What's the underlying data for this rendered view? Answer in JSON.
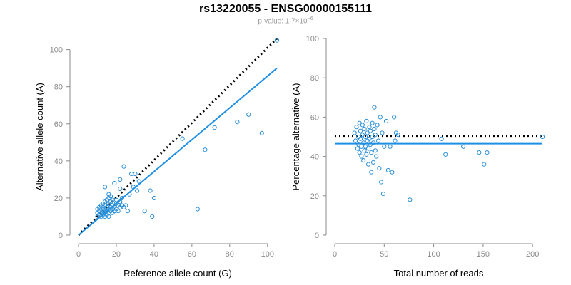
{
  "header": {
    "title": "rs13220055 - ENSG00000155111",
    "pvalue_prefix": "p-value: 1.7×10",
    "pvalue_exponent": "−6"
  },
  "colors": {
    "points": "#2a8fd8",
    "fit_line": "#1f8fe6",
    "reference_line": "#000000",
    "axis": "#8a8a8a",
    "tick_label": "#8a8a8a"
  },
  "chart_data": [
    {
      "type": "scatter",
      "title": "",
      "xlabel": "Reference allele count (G)",
      "ylabel": "Alternative allele count (A)",
      "xlim": [
        0,
        105
      ],
      "ylim": [
        0,
        106
      ],
      "xticks": [
        0,
        20,
        40,
        60,
        80,
        100
      ],
      "yticks": [
        0,
        20,
        40,
        60,
        80,
        100
      ],
      "grid": false,
      "points": [
        [
          10,
          10
        ],
        [
          10,
          12
        ],
        [
          10,
          14
        ],
        [
          11,
          11
        ],
        [
          11,
          13
        ],
        [
          11,
          15
        ],
        [
          12,
          10
        ],
        [
          12,
          12
        ],
        [
          12,
          14
        ],
        [
          12,
          16
        ],
        [
          13,
          11
        ],
        [
          13,
          13
        ],
        [
          13,
          15
        ],
        [
          13,
          17
        ],
        [
          14,
          10
        ],
        [
          14,
          12
        ],
        [
          14,
          14
        ],
        [
          14,
          16
        ],
        [
          14,
          18
        ],
        [
          14,
          26
        ],
        [
          15,
          11
        ],
        [
          15,
          13
        ],
        [
          15,
          15
        ],
        [
          15,
          19
        ],
        [
          16,
          10
        ],
        [
          16,
          12
        ],
        [
          16,
          14
        ],
        [
          16,
          17
        ],
        [
          16,
          20
        ],
        [
          16,
          22
        ],
        [
          17,
          13
        ],
        [
          17,
          15
        ],
        [
          17,
          18
        ],
        [
          17,
          21
        ],
        [
          18,
          12
        ],
        [
          18,
          14
        ],
        [
          18,
          16
        ],
        [
          18,
          19
        ],
        [
          19,
          13
        ],
        [
          19,
          15
        ],
        [
          19,
          28
        ],
        [
          20,
          14
        ],
        [
          20,
          17
        ],
        [
          20,
          19
        ],
        [
          21,
          13
        ],
        [
          21,
          16
        ],
        [
          22,
          15
        ],
        [
          22,
          18
        ],
        [
          22,
          25
        ],
        [
          22,
          30
        ],
        [
          23,
          16
        ],
        [
          23,
          20
        ],
        [
          24,
          15
        ],
        [
          24,
          37
        ],
        [
          25,
          16
        ],
        [
          26,
          13
        ],
        [
          27,
          22
        ],
        [
          28,
          33
        ],
        [
          29,
          26
        ],
        [
          30,
          33
        ],
        [
          31,
          24
        ],
        [
          32,
          29
        ],
        [
          35,
          13
        ],
        [
          38,
          24
        ],
        [
          39,
          10
        ],
        [
          40,
          20
        ],
        [
          55,
          52
        ],
        [
          63,
          14
        ],
        [
          67,
          46
        ],
        [
          72,
          58
        ],
        [
          84,
          61
        ],
        [
          90,
          65
        ],
        [
          97,
          55
        ],
        [
          105,
          105
        ]
      ],
      "fit_line": [
        [
          0,
          0
        ],
        [
          105,
          90
        ]
      ],
      "reference_line": [
        [
          0,
          0
        ],
        [
          105,
          106
        ]
      ]
    },
    {
      "type": "scatter",
      "title": "",
      "xlabel": "Total number of reads",
      "ylabel": "Percentage alternative (A)",
      "xlim": [
        0,
        210
      ],
      "ylim": [
        0,
        100
      ],
      "xticks": [
        0,
        50,
        100,
        150,
        200
      ],
      "yticks": [
        0,
        20,
        40,
        60,
        80,
        100
      ],
      "grid": false,
      "points": [
        [
          20,
          52
        ],
        [
          21,
          48
        ],
        [
          22,
          55
        ],
        [
          23,
          44
        ],
        [
          24,
          50
        ],
        [
          24,
          46
        ],
        [
          25,
          57
        ],
        [
          25,
          42
        ],
        [
          26,
          53
        ],
        [
          26,
          49
        ],
        [
          27,
          40
        ],
        [
          27,
          45
        ],
        [
          28,
          56
        ],
        [
          28,
          51
        ],
        [
          29,
          47
        ],
        [
          29,
          38
        ],
        [
          30,
          43
        ],
        [
          30,
          54
        ],
        [
          31,
          50
        ],
        [
          31,
          45
        ],
        [
          32,
          41
        ],
        [
          32,
          58
        ],
        [
          33,
          48
        ],
        [
          33,
          52
        ],
        [
          34,
          44
        ],
        [
          34,
          36
        ],
        [
          35,
          55
        ],
        [
          35,
          49
        ],
        [
          36,
          46
        ],
        [
          36,
          53
        ],
        [
          37,
          42
        ],
        [
          37,
          32
        ],
        [
          38,
          57
        ],
        [
          38,
          50
        ],
        [
          39,
          37
        ],
        [
          39,
          47
        ],
        [
          40,
          54
        ],
        [
          40,
          65
        ],
        [
          41,
          43
        ],
        [
          41,
          51
        ],
        [
          42,
          40
        ],
        [
          43,
          56
        ],
        [
          44,
          48
        ],
        [
          45,
          34
        ],
        [
          46,
          60
        ],
        [
          47,
          27
        ],
        [
          48,
          52
        ],
        [
          49,
          21
        ],
        [
          50,
          45
        ],
        [
          52,
          58
        ],
        [
          54,
          33
        ],
        [
          56,
          45
        ],
        [
          58,
          32
        ],
        [
          60,
          60
        ],
        [
          61,
          48
        ],
        [
          62,
          52
        ],
        [
          64,
          51
        ],
        [
          76,
          18
        ],
        [
          108,
          49
        ],
        [
          112,
          41
        ],
        [
          130,
          45
        ],
        [
          146,
          42
        ],
        [
          151,
          36
        ],
        [
          154,
          42
        ],
        [
          210,
          50
        ]
      ],
      "fit_line": [
        [
          0,
          46.5
        ],
        [
          210,
          46.5
        ]
      ],
      "reference_line": [
        [
          0,
          50.5
        ],
        [
          210,
          50.5
        ]
      ]
    }
  ]
}
